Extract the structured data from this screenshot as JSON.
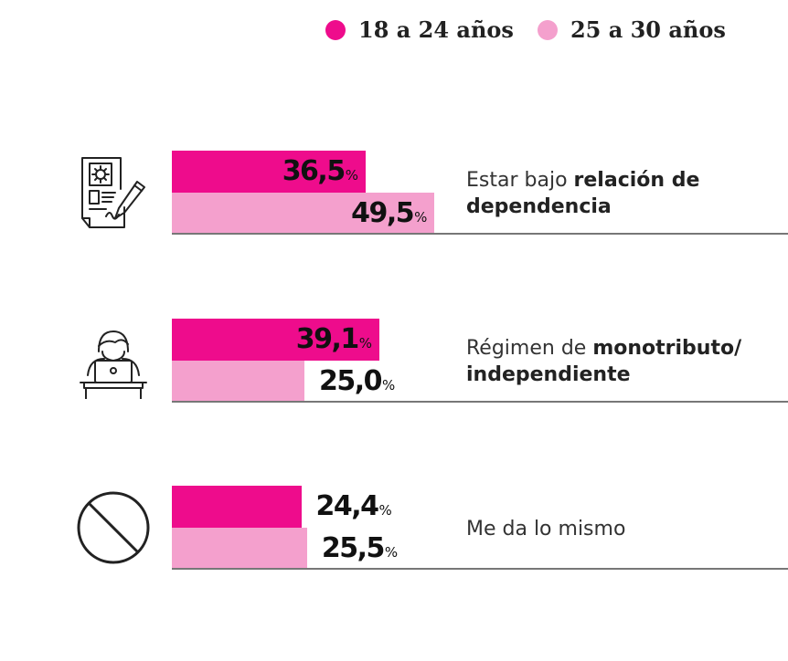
{
  "legend": [
    {
      "label": "18 a 24 años",
      "color": "#ee0c8c"
    },
    {
      "label": "25 a 30 años",
      "color": "#f4a0cd"
    }
  ],
  "percent_symbol": "%",
  "rows": [
    {
      "icon": "contract-signing-icon",
      "label_plain": "Estar bajo ",
      "label_bold": "relación de dependencia",
      "value_1": "36,5",
      "value_2": "49,5"
    },
    {
      "icon": "person-at-laptop-icon",
      "label_plain": "Régimen de ",
      "label_bold": "monotributo/ independiente",
      "value_1": "39,1",
      "value_2": "25,0"
    },
    {
      "icon": "prohibited-icon",
      "label_plain": "Me da lo mismo",
      "label_bold": "",
      "value_1": "24,4",
      "value_2": "25,5"
    }
  ],
  "chart_data": {
    "type": "bar",
    "orientation": "horizontal",
    "categories": [
      "Estar bajo relación de dependencia",
      "Régimen de monotributo/ independiente",
      "Me da lo mismo"
    ],
    "series": [
      {
        "name": "18 a 24 años",
        "values": [
          36.5,
          39.1,
          24.4
        ],
        "color": "#ee0c8c"
      },
      {
        "name": "25 a 30 años",
        "values": [
          49.5,
          25.0,
          25.5
        ],
        "color": "#f4a0cd"
      }
    ],
    "unit": "%",
    "legend": "top-right",
    "grid": false
  }
}
